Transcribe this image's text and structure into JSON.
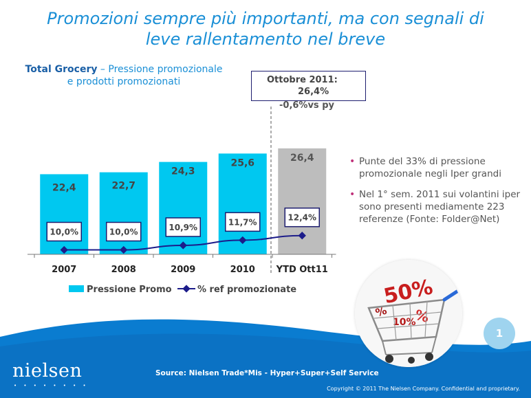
{
  "slide": {
    "title_line1": "Promozioni sempre più importanti, ma con segnali di",
    "title_line2": "leve rallentamento nel breve",
    "subtitle_strong": "Total Grocery",
    "subtitle_rest_1": " – Pressione promozionale",
    "subtitle_line2": "e prodotti promozionati",
    "callout_line1": "Ottobre 2011:",
    "callout_line2": "26,4%",
    "callout_line3": "-0,6%vs py",
    "bullets": [
      "Punte del 33% di pressione promozionale negli Iper grandi",
      "Nel 1° sem. 2011 sui volantini iper sono presenti mediamente 223 referenze (Fonte: Folder@Net)"
    ],
    "page_number": "1",
    "logo_text": "nielsen",
    "logo_dots": "• • • • • • • •",
    "source": "Source: Nielsen Trade*Mis - Hyper+Super+Self Service",
    "copyright": "Copyright © 2011 The Nielsen Company. Confidential and proprietary.",
    "colors": {
      "title": "#1a8fd6",
      "bar": "#00c8f0",
      "bar_ytd": "#bdbdbd",
      "line": "#1c1c8a",
      "wave": "#0a7cd0"
    }
  },
  "chart_data": {
    "type": "bar",
    "categories": [
      "2007",
      "2008",
      "2009",
      "2010",
      "YTD Ott11"
    ],
    "series": [
      {
        "name": "Pressione Promo",
        "type": "bar",
        "values": [
          22.4,
          22.7,
          24.3,
          25.6,
          26.4
        ],
        "labels": [
          "22,4",
          "22,7",
          "24,3",
          "25,6",
          "26,4"
        ]
      },
      {
        "name": "% ref promozionate",
        "type": "line",
        "values": [
          10.0,
          10.0,
          10.9,
          11.7,
          12.4
        ],
        "labels": [
          "10,0%",
          "10,0%",
          "10,9%",
          "11,7%",
          "12,4%"
        ]
      }
    ],
    "legend_position": "bottom",
    "highlight_last_category": true
  }
}
